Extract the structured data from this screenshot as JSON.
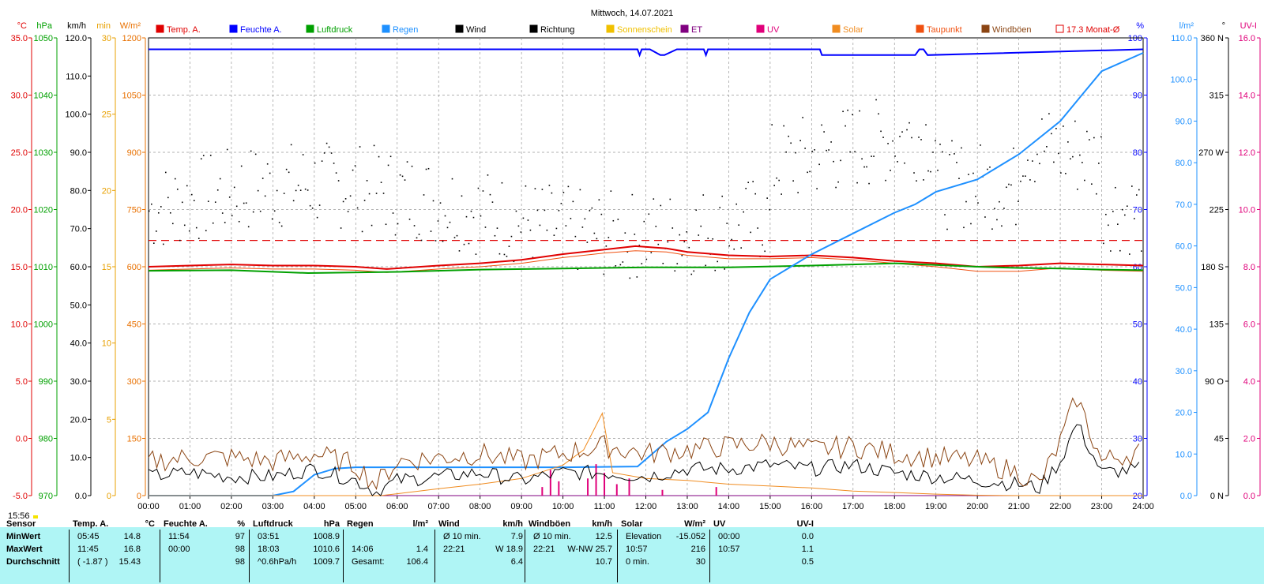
{
  "chart_data": {
    "type": "line",
    "title": "Mittwoch, 14.07.2021",
    "x_ticks": [
      "00:00",
      "01:00",
      "02:00",
      "03:00",
      "04:00",
      "05:00",
      "06:00",
      "07:00",
      "08:00",
      "09:00",
      "10:00",
      "11:00",
      "12:00",
      "13:00",
      "14:00",
      "15:00",
      "16:00",
      "17:00",
      "18:00",
      "19:00",
      "20:00",
      "21:00",
      "22:00",
      "23:00",
      "24:00"
    ],
    "legend": [
      {
        "name": "Temp. A.",
        "color": "#e00000",
        "filled": true
      },
      {
        "name": "Feuchte A.",
        "color": "#0000ff",
        "filled": true
      },
      {
        "name": "Luftdruck",
        "color": "#00a000",
        "filled": true
      },
      {
        "name": "Regen",
        "color": "#1e90ff",
        "filled": true
      },
      {
        "name": "Wind",
        "color": "#000000",
        "filled": true
      },
      {
        "name": "Richtung",
        "color": "#000000",
        "filled": true
      },
      {
        "name": "Sonnenschein",
        "color": "#f0c000",
        "filled": true
      },
      {
        "name": "ET",
        "color": "#800080",
        "filled": true
      },
      {
        "name": "UV",
        "color": "#e0007a",
        "filled": true
      },
      {
        "name": "Solar",
        "color": "#f08c20",
        "filled": true
      },
      {
        "name": "Taupunkt",
        "color": "#f05010",
        "filled": true
      },
      {
        "name": "Windböen",
        "color": "#8b4513",
        "filled": true
      },
      {
        "name": "17.3 Monat-Ø",
        "color": "#e00000",
        "filled": false
      }
    ],
    "axes_left": [
      {
        "unit": "°C",
        "color": "#e00000",
        "ticks": [
          "35.0",
          "30.0",
          "25.0",
          "20.0",
          "15.0",
          "10.0",
          "5.0",
          "0.0",
          "-5.0"
        ],
        "min": -5,
        "max": 35
      },
      {
        "unit": "hPa",
        "color": "#00a000",
        "ticks": [
          "1050",
          "1040",
          "1030",
          "1020",
          "1010",
          "1000",
          "990",
          "980",
          "970"
        ],
        "min": 970,
        "max": 1050
      },
      {
        "unit": "km/h",
        "color": "#000000",
        "ticks": [
          "120.0",
          "110.0",
          "100.0",
          "90.0",
          "80.0",
          "70.0",
          "60.0",
          "50.0",
          "40.0",
          "30.0",
          "20.0",
          "10.0",
          "0.0"
        ],
        "min": 0,
        "max": 120
      },
      {
        "unit": "min",
        "color": "#e8a000",
        "ticks": [
          "30",
          "25",
          "20",
          "15",
          "10",
          "5",
          "0"
        ],
        "min": 0,
        "max": 30
      },
      {
        "unit": "W/m²",
        "color": "#e87000",
        "ticks": [
          "1200",
          "1050",
          "900",
          "750",
          "600",
          "450",
          "300",
          "150",
          "0"
        ],
        "min": 0,
        "max": 1200
      }
    ],
    "axes_right": [
      {
        "unit": "%",
        "color": "#0000ff",
        "ticks": [
          "100",
          "90",
          "80",
          "70",
          "60",
          "50",
          "40",
          "30",
          "20"
        ],
        "min": 20,
        "max": 100
      },
      {
        "unit": "l/m²",
        "color": "#1e90ff",
        "ticks": [
          "110.0",
          "100.0",
          "90.0",
          "80.0",
          "70.0",
          "60.0",
          "50.0",
          "40.0",
          "30.0",
          "20.0",
          "10.0",
          "0.0"
        ],
        "min": 0,
        "max": 110
      },
      {
        "unit": "°",
        "color": "#000000",
        "ticks": [
          "360 N",
          "315",
          "270 W",
          "225",
          "180 S",
          "135",
          "90 O",
          "45",
          "0 N"
        ],
        "min": 0,
        "max": 360
      },
      {
        "unit": "UV-I",
        "color": "#e0007a",
        "ticks": [
          "16.0",
          "14.0",
          "12.0",
          "10.0",
          "8.0",
          "6.0",
          "4.0",
          "2.0",
          "0.0"
        ],
        "min": 0,
        "max": 16
      }
    ],
    "reference_line": {
      "name": "17.3 Monat-Ø",
      "value": 17.3,
      "unit": "°C"
    },
    "series": [
      {
        "name": "Temp. A.",
        "axis": "°C",
        "color": "#e00000",
        "x": [
          0,
          1,
          2,
          3,
          4,
          5,
          5.75,
          7,
          8,
          9,
          10,
          11,
          11.75,
          12.5,
          13,
          14,
          15,
          16,
          17,
          18,
          19,
          20,
          21,
          22,
          23,
          24
        ],
        "values": [
          15.0,
          15.1,
          15.2,
          15.1,
          15.1,
          15.0,
          14.8,
          15.1,
          15.3,
          15.6,
          16.1,
          16.5,
          16.8,
          16.6,
          16.3,
          16.0,
          15.9,
          16.0,
          15.8,
          15.5,
          15.3,
          15.0,
          15.1,
          15.3,
          15.2,
          15.1
        ]
      },
      {
        "name": "Taupunkt",
        "axis": "°C",
        "color": "#f05010",
        "x": [
          0,
          1,
          2,
          3,
          4,
          5,
          5.75,
          7,
          8,
          9,
          10,
          11,
          11.75,
          12.5,
          13,
          14,
          15,
          16,
          17,
          18,
          19,
          20,
          21,
          22,
          23,
          24
        ],
        "values": [
          14.7,
          14.8,
          14.9,
          14.8,
          14.8,
          14.7,
          14.5,
          14.8,
          15.0,
          15.3,
          15.8,
          16.2,
          16.4,
          16.3,
          16.0,
          15.7,
          15.7,
          15.8,
          15.6,
          15.3,
          15.0,
          14.6,
          14.6,
          14.9,
          14.7,
          14.6
        ]
      },
      {
        "name": "Luftdruck",
        "axis": "hPa",
        "color": "#00a000",
        "x": [
          0,
          2,
          3.85,
          6,
          8,
          10,
          12,
          14,
          16,
          18.05,
          19,
          20,
          21,
          22,
          23,
          24
        ],
        "values": [
          1009.3,
          1009.4,
          1008.9,
          1009.1,
          1009.5,
          1009.7,
          1009.9,
          1009.9,
          1010.2,
          1010.6,
          1010.3,
          1010.0,
          1009.8,
          1009.7,
          1009.5,
          1009.4
        ]
      },
      {
        "name": "Feuchte A.",
        "axis": "%",
        "color": "#0000ff",
        "x": [
          0,
          11.8,
          11.85,
          11.9,
          12.1,
          12.35,
          12.45,
          12.75,
          13.4,
          13.45,
          13.5,
          16.2,
          16.25,
          17.5,
          18.4,
          18.5,
          18.6,
          18.7,
          18.8,
          24
        ],
        "values": [
          98,
          98,
          97,
          98,
          98,
          97,
          97,
          98,
          98,
          97,
          98,
          98,
          97,
          97,
          97,
          97,
          98,
          98,
          97,
          98
        ]
      },
      {
        "name": "Regen",
        "axis": "l/m²",
        "color": "#1e90ff",
        "x": [
          0,
          3,
          3.5,
          4,
          4.5,
          5,
          6,
          8,
          10,
          11.8,
          12.5,
          13,
          13.5,
          14,
          14.5,
          15,
          16,
          17,
          18,
          18.5,
          19,
          20,
          21,
          22,
          22.5,
          23,
          24
        ],
        "values": [
          0,
          0,
          1,
          5,
          6.5,
          6.8,
          6.8,
          6.8,
          6.8,
          7,
          13,
          16,
          20,
          33,
          44,
          52,
          58,
          63,
          68,
          70,
          73,
          76,
          82,
          90,
          96,
          102,
          106.4
        ]
      },
      {
        "name": "Sonnenschein",
        "axis": "min",
        "color": "#f0c000",
        "x": [
          0,
          24
        ],
        "values": [
          0,
          0
        ]
      },
      {
        "name": "ET",
        "axis": "l/m²",
        "color": "#800080",
        "x": [
          0,
          24
        ],
        "values": [
          0,
          0
        ]
      },
      {
        "name": "UV",
        "axis": "UV-I",
        "color": "#e0007a",
        "x": [
          9.5,
          9.7,
          9.9,
          10.6,
          10.8,
          11,
          11.3,
          11.6,
          12.4,
          13.7
        ],
        "values": [
          0.3,
          0.9,
          0.5,
          0.6,
          1.1,
          0.8,
          0.4,
          0.6,
          0.2,
          0.3
        ]
      },
      {
        "name": "Solar",
        "axis": "W/m²",
        "color": "#f08c20",
        "x": [
          0,
          5.6,
          6,
          7,
          8,
          9,
          10,
          10.5,
          10.95,
          11.2,
          12,
          13,
          14,
          15,
          16,
          17,
          18,
          19,
          20,
          21,
          24
        ],
        "values": [
          0,
          0,
          5,
          18,
          30,
          45,
          80,
          120,
          216,
          60,
          45,
          40,
          30,
          25,
          20,
          12,
          8,
          4,
          1,
          0,
          0
        ]
      },
      {
        "name": "Wind",
        "axis": "km/h",
        "color": "#000000",
        "x": [
          0,
          1,
          2,
          3,
          4,
          5,
          5.5,
          6,
          7,
          8,
          9,
          10,
          11,
          12,
          13,
          14,
          15,
          16,
          17,
          18,
          19,
          20,
          21,
          21.5,
          22,
          22.4,
          23,
          24
        ],
        "values": [
          5,
          6,
          5,
          5,
          7,
          4,
          1,
          4,
          5,
          6,
          4,
          6,
          6,
          5,
          7,
          7,
          8,
          7,
          8,
          6,
          5,
          4,
          3,
          2,
          9,
          18.9,
          6,
          7
        ]
      },
      {
        "name": "Windböen",
        "axis": "km/h",
        "color": "#8b4513",
        "x": [
          0,
          1,
          2,
          3,
          4,
          5,
          5.5,
          6,
          7,
          8,
          9,
          10,
          11,
          12,
          13,
          14,
          15,
          16,
          17,
          18,
          19,
          20,
          21,
          21.5,
          22,
          22.4,
          23,
          24
        ],
        "values": [
          9,
          10,
          10,
          9,
          11,
          8,
          3,
          9,
          10,
          11,
          9,
          11,
          13,
          11,
          12,
          13,
          14,
          12,
          13,
          11,
          10,
          9,
          6,
          3,
          14,
          25.7,
          9,
          12
        ]
      }
    ],
    "direction": {
      "name": "Richtung",
      "axis": "°",
      "color": "#000000"
    }
  },
  "footer": {
    "time": "15:56"
  },
  "stats": {
    "groups": [
      {
        "label": "Sensor",
        "rows": [
          "MinWert",
          "MaxWert",
          "Durchschnitt"
        ]
      },
      {
        "label": "Temp. A.",
        "unit": "°C",
        "c1": [
          "05:45",
          "11:45",
          "( -1.87 )"
        ],
        "c2": [
          "14.8",
          "16.8",
          "15.43"
        ]
      },
      {
        "label": "Feuchte A.",
        "unit": "%",
        "c1": [
          "11:54",
          "00:00",
          ""
        ],
        "c2": [
          "97",
          "98",
          "98"
        ]
      },
      {
        "label": "Luftdruck",
        "unit": "hPa",
        "c1": [
          "03:51",
          "18:03",
          "^0.6hPa/h"
        ],
        "c2": [
          "1008.9",
          "1010.6",
          "1009.7"
        ]
      },
      {
        "label": "Regen",
        "unit": "l/m²",
        "c1": [
          "",
          "14:06",
          "Gesamt:"
        ],
        "c2": [
          "",
          "1.4",
          "106.4"
        ]
      },
      {
        "label": "Wind",
        "unit": "km/h",
        "c1": [
          "Ø 10 min.",
          "22:21",
          ""
        ],
        "c2": [
          "7.9",
          "W 18.9",
          "6.4"
        ]
      },
      {
        "label": "Windböen",
        "unit": "km/h",
        "c1": [
          "Ø 10 min.",
          "22:21",
          ""
        ],
        "c2": [
          "12.5",
          "W-NW 25.7",
          "10.7"
        ]
      },
      {
        "label": "Solar",
        "unit": "W/m²",
        "c1": [
          "Elevation",
          "10:57",
          "0 min."
        ],
        "c2": [
          "-15.052",
          "216",
          "30"
        ]
      },
      {
        "label": "UV",
        "unit": "UV-I",
        "c1": [
          "00:00",
          "10:57",
          ""
        ],
        "c2": [
          "0.0",
          "1.1",
          "0.5"
        ]
      }
    ]
  }
}
